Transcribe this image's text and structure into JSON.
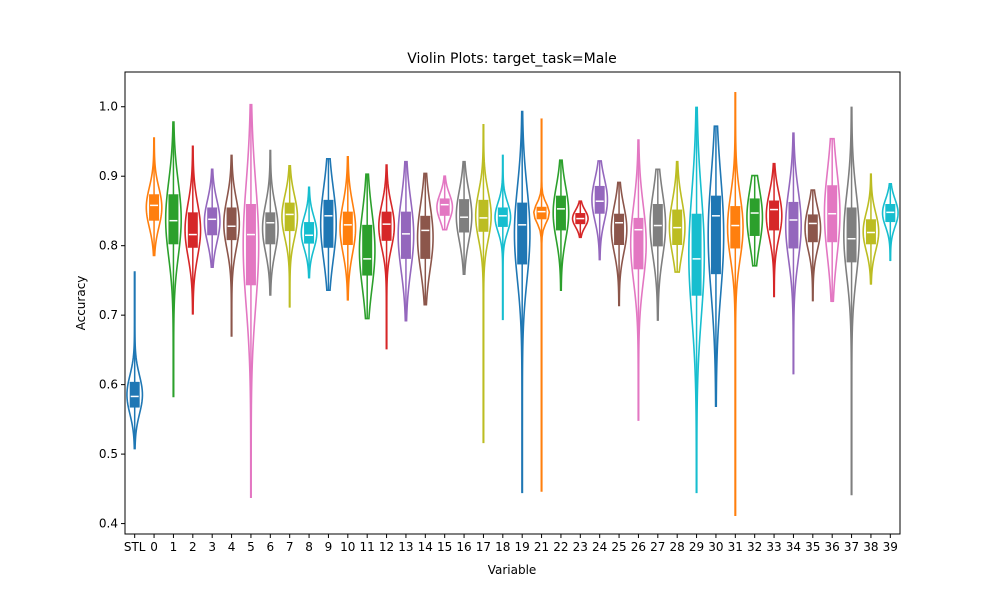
{
  "chart_data": {
    "type": "violin",
    "title": "Violin Plots: target_task=Male",
    "xlabel": "Variable",
    "ylabel": "Accuracy",
    "ylim": [
      0.385,
      1.05
    ],
    "yticks": [
      0.4,
      0.5,
      0.6,
      0.7,
      0.8,
      0.9,
      1.0
    ],
    "ytick_labels": [
      "0.4",
      "0.5",
      "0.6",
      "0.7",
      "0.8",
      "0.9",
      "1.0"
    ],
    "grid": false,
    "palette": [
      "#1f77b4",
      "#ff7f0e",
      "#2ca02c",
      "#d62728",
      "#9467bd",
      "#8c564b",
      "#e377c2",
      "#7f7f7f",
      "#bcbd22",
      "#17becf"
    ],
    "categories": [
      "STL",
      "0",
      "1",
      "2",
      "3",
      "4",
      "5",
      "6",
      "7",
      "8",
      "9",
      "10",
      "11",
      "12",
      "13",
      "14",
      "15",
      "16",
      "17",
      "18",
      "19",
      "21",
      "22",
      "23",
      "24",
      "25",
      "26",
      "27",
      "28",
      "29",
      "30",
      "31",
      "32",
      "33",
      "34",
      "35",
      "36",
      "37",
      "38",
      "39"
    ],
    "series": [
      {
        "label": "STL",
        "min": 0.508,
        "max": 0.762,
        "q1": 0.567,
        "median": 0.583,
        "q3": 0.604
      },
      {
        "label": "0",
        "min": 0.786,
        "max": 0.955,
        "q1": 0.836,
        "median": 0.858,
        "q3": 0.874
      },
      {
        "label": "1",
        "min": 0.583,
        "max": 0.978,
        "q1": 0.802,
        "median": 0.836,
        "q3": 0.874
      },
      {
        "label": "2",
        "min": 0.702,
        "max": 0.943,
        "q1": 0.797,
        "median": 0.816,
        "q3": 0.848
      },
      {
        "label": "3",
        "min": 0.769,
        "max": 0.91,
        "q1": 0.815,
        "median": 0.838,
        "q3": 0.855
      },
      {
        "label": "4",
        "min": 0.67,
        "max": 0.93,
        "q1": 0.808,
        "median": 0.828,
        "q3": 0.855
      },
      {
        "label": "5",
        "min": 0.438,
        "max": 1.003,
        "q1": 0.743,
        "median": 0.816,
        "q3": 0.86
      },
      {
        "label": "6",
        "min": 0.729,
        "max": 0.937,
        "q1": 0.802,
        "median": 0.833,
        "q3": 0.848
      },
      {
        "label": "7",
        "min": 0.712,
        "max": 0.915,
        "q1": 0.821,
        "median": 0.845,
        "q3": 0.862
      },
      {
        "label": "8",
        "min": 0.754,
        "max": 0.884,
        "q1": 0.803,
        "median": 0.815,
        "q3": 0.834
      },
      {
        "label": "9",
        "min": 0.736,
        "max": 0.925,
        "q1": 0.797,
        "median": 0.843,
        "q3": 0.866
      },
      {
        "label": "10",
        "min": 0.722,
        "max": 0.928,
        "q1": 0.801,
        "median": 0.83,
        "q3": 0.849
      },
      {
        "label": "11",
        "min": 0.695,
        "max": 0.903,
        "q1": 0.757,
        "median": 0.781,
        "q3": 0.83
      },
      {
        "label": "12",
        "min": 0.652,
        "max": 0.916,
        "q1": 0.807,
        "median": 0.831,
        "q3": 0.849
      },
      {
        "label": "13",
        "min": 0.692,
        "max": 0.921,
        "q1": 0.781,
        "median": 0.817,
        "q3": 0.849
      },
      {
        "label": "14",
        "min": 0.715,
        "max": 0.904,
        "q1": 0.781,
        "median": 0.822,
        "q3": 0.843
      },
      {
        "label": "15",
        "min": 0.823,
        "max": 0.9,
        "q1": 0.843,
        "median": 0.859,
        "q3": 0.868
      },
      {
        "label": "16",
        "min": 0.759,
        "max": 0.921,
        "q1": 0.819,
        "median": 0.841,
        "q3": 0.867
      },
      {
        "label": "17",
        "min": 0.517,
        "max": 0.974,
        "q1": 0.82,
        "median": 0.84,
        "q3": 0.866
      },
      {
        "label": "18",
        "min": 0.694,
        "max": 0.93,
        "q1": 0.827,
        "median": 0.843,
        "q3": 0.855
      },
      {
        "label": "19",
        "min": 0.445,
        "max": 0.993,
        "q1": 0.773,
        "median": 0.83,
        "q3": 0.862
      },
      {
        "label": "21",
        "min": 0.447,
        "max": 0.982,
        "q1": 0.838,
        "median": 0.849,
        "q3": 0.856
      },
      {
        "label": "22",
        "min": 0.736,
        "max": 0.923,
        "q1": 0.822,
        "median": 0.853,
        "q3": 0.872
      },
      {
        "label": "23",
        "min": 0.812,
        "max": 0.864,
        "q1": 0.831,
        "median": 0.839,
        "q3": 0.847
      },
      {
        "label": "24",
        "min": 0.78,
        "max": 0.922,
        "q1": 0.846,
        "median": 0.864,
        "q3": 0.886
      },
      {
        "label": "25",
        "min": 0.714,
        "max": 0.891,
        "q1": 0.801,
        "median": 0.833,
        "q3": 0.846
      },
      {
        "label": "26",
        "min": 0.549,
        "max": 0.952,
        "q1": 0.766,
        "median": 0.823,
        "q3": 0.84
      },
      {
        "label": "27",
        "min": 0.693,
        "max": 0.91,
        "q1": 0.799,
        "median": 0.829,
        "q3": 0.86
      },
      {
        "label": "28",
        "min": 0.762,
        "max": 0.921,
        "q1": 0.801,
        "median": 0.826,
        "q3": 0.852
      },
      {
        "label": "29",
        "min": 0.445,
        "max": 0.999,
        "q1": 0.728,
        "median": 0.781,
        "q3": 0.846
      },
      {
        "label": "30",
        "min": 0.569,
        "max": 0.972,
        "q1": 0.759,
        "median": 0.843,
        "q3": 0.872
      },
      {
        "label": "31",
        "min": 0.412,
        "max": 1.02,
        "q1": 0.796,
        "median": 0.829,
        "q3": 0.857
      },
      {
        "label": "32",
        "min": 0.771,
        "max": 0.901,
        "q1": 0.814,
        "median": 0.847,
        "q3": 0.868
      },
      {
        "label": "33",
        "min": 0.727,
        "max": 0.918,
        "q1": 0.822,
        "median": 0.852,
        "q3": 0.865
      },
      {
        "label": "34",
        "min": 0.616,
        "max": 0.962,
        "q1": 0.796,
        "median": 0.837,
        "q3": 0.863
      },
      {
        "label": "35",
        "min": 0.721,
        "max": 0.88,
        "q1": 0.805,
        "median": 0.832,
        "q3": 0.845
      },
      {
        "label": "36",
        "min": 0.72,
        "max": 0.954,
        "q1": 0.805,
        "median": 0.846,
        "q3": 0.887
      },
      {
        "label": "37",
        "min": 0.442,
        "max": 0.999,
        "q1": 0.776,
        "median": 0.81,
        "q3": 0.855
      },
      {
        "label": "38",
        "min": 0.745,
        "max": 0.903,
        "q1": 0.802,
        "median": 0.819,
        "q3": 0.838
      },
      {
        "label": "39",
        "min": 0.779,
        "max": 0.889,
        "q1": 0.834,
        "median": 0.848,
        "q3": 0.86
      }
    ]
  }
}
